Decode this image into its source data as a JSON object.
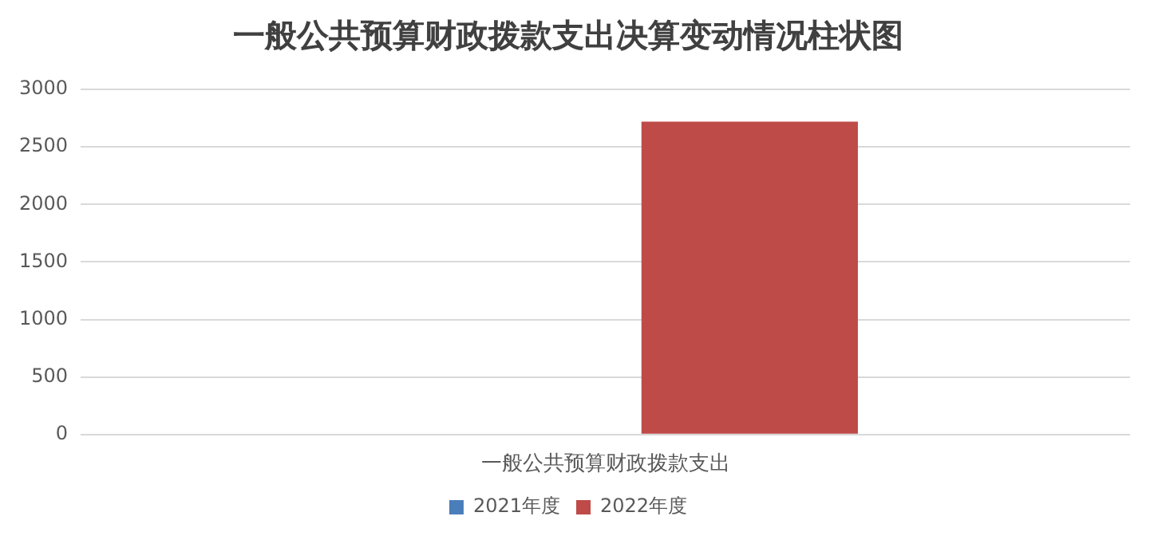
{
  "chart_data": {
    "type": "bar",
    "title": "一般公共预算财政拨款支出决算变动情况柱状图",
    "categories": [
      "一般公共预算财政拨款支出"
    ],
    "series": [
      {
        "name": "2021年度",
        "color": "#4a7ebb",
        "values": [
          0
        ]
      },
      {
        "name": "2022年度",
        "color": "#be4b48",
        "values": [
          2720
        ]
      }
    ],
    "ylim": [
      0,
      3000
    ],
    "yticks": [
      0,
      500,
      1000,
      1500,
      2000,
      2500,
      3000
    ],
    "grid": "y",
    "legend": "bottom"
  }
}
